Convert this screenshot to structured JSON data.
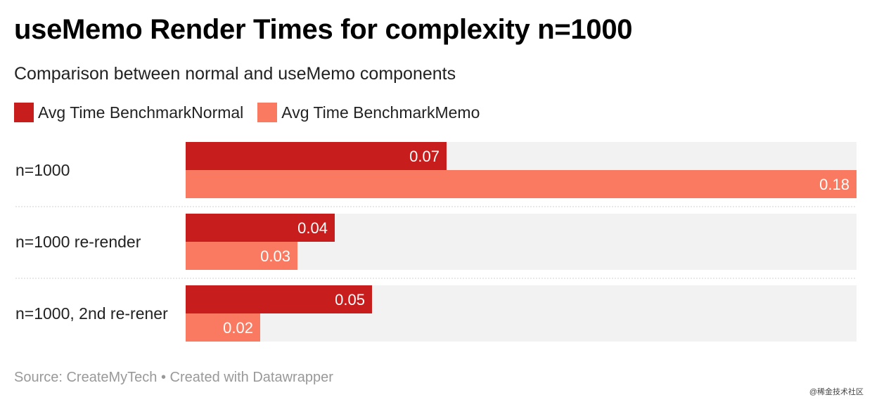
{
  "title": "useMemo Render Times for complexity n=1000",
  "subtitle": "Comparison between normal and useMemo components",
  "footer": "Source: CreateMyTech • Created with Datawrapper",
  "watermark": "@稀金技术社区",
  "colors": {
    "normal": "#c71e1d",
    "memo": "#fa7a61",
    "track": "#f2f2f2",
    "separator": "#d9d9d9"
  },
  "chart_data": {
    "type": "bar",
    "orientation": "horizontal",
    "categories": [
      "n=1000",
      "n=1000 re-render",
      "n=1000, 2nd re-rener"
    ],
    "series": [
      {
        "name": "Avg Time BenchmarkNormal",
        "values": [
          0.07,
          0.04,
          0.05
        ],
        "labels": [
          "0.07",
          "0.04",
          "0.05"
        ]
      },
      {
        "name": "Avg Time BenchmarkMemo",
        "values": [
          0.18,
          0.03,
          0.02
        ],
        "labels": [
          "0.18",
          "0.03",
          "0.02"
        ]
      }
    ],
    "xlim": [
      0,
      0.18
    ],
    "grid": false,
    "legend_position": "top-left"
  }
}
